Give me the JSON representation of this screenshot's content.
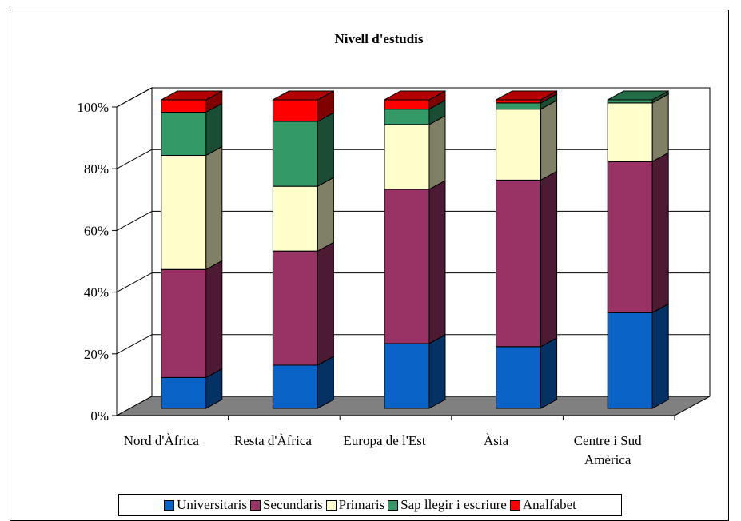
{
  "chart_data": {
    "type": "bar",
    "stacked": true,
    "percent_stacked": true,
    "three_d": true,
    "title": "Nivell d'estudis",
    "categories": [
      "Nord d'Àfrica",
      "Resta d'Àfrica",
      "Europa de l'Est",
      "Àsia",
      "Centre i Sud Amèrica"
    ],
    "category_lines": [
      [
        "Nord d'Àfrica"
      ],
      [
        "Resta d'Àfrica"
      ],
      [
        "Europa de l'Est"
      ],
      [
        "Àsia"
      ],
      [
        "Centre i Sud",
        "Amèrica"
      ]
    ],
    "yticks": [
      "0%",
      "20%",
      "40%",
      "60%",
      "80%",
      "100%"
    ],
    "ylim": [
      0,
      100
    ],
    "grid": true,
    "legend_position": "bottom",
    "series": [
      {
        "name": "Universitaris",
        "color": "#0a64c8",
        "values": [
          10,
          14,
          21,
          20,
          31
        ]
      },
      {
        "name": "Secundaris",
        "color": "#993366",
        "values": [
          35,
          37,
          50,
          54,
          49
        ]
      },
      {
        "name": "Primaris",
        "color": "#ffffcc",
        "values": [
          37,
          21,
          21,
          23,
          19
        ]
      },
      {
        "name": "Sap llegir i escriure",
        "color": "#339966",
        "values": [
          14,
          21,
          5,
          2,
          1
        ]
      },
      {
        "name": "Analfabet",
        "color": "#ff0000",
        "values": [
          4,
          7,
          3,
          1,
          0
        ]
      }
    ]
  }
}
